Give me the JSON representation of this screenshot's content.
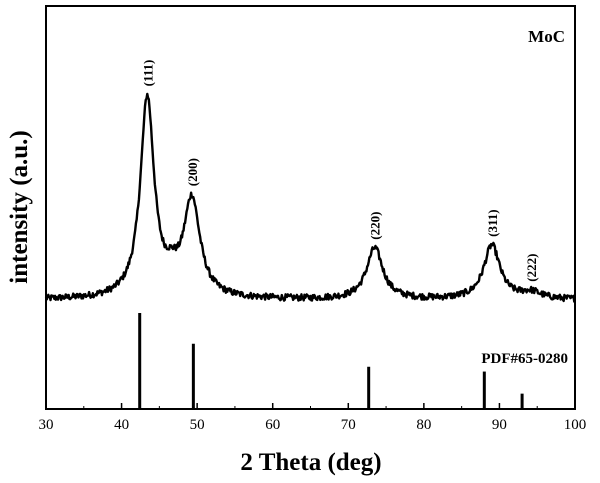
{
  "chart_data": {
    "type": "line",
    "title": "",
    "xlabel": "2 Theta (deg)",
    "ylabel": "intensity (a.u.)",
    "xlim": [
      30,
      100
    ],
    "xticks": [
      30,
      40,
      50,
      60,
      70,
      80,
      90,
      100
    ],
    "yticks_shown": false,
    "sample_label": "MoC",
    "series": [
      {
        "name": "MoC",
        "baseline": 0.08,
        "noise": 0.012,
        "peaks": [
          {
            "center": 43.4,
            "height": 0.74,
            "width": 1.1
          },
          {
            "center": 49.3,
            "height": 0.36,
            "width": 1.3
          },
          {
            "center": 46.6,
            "height": 0.05,
            "width": 1.0
          },
          {
            "center": 73.5,
            "height": 0.19,
            "width": 1.3
          },
          {
            "center": 89.0,
            "height": 0.2,
            "width": 1.3
          },
          {
            "center": 94.2,
            "height": 0.025,
            "width": 1.6
          }
        ]
      }
    ],
    "peak_labels": [
      {
        "x": 43.4,
        "text": "(111)"
      },
      {
        "x": 49.3,
        "text": "(200)"
      },
      {
        "x": 73.5,
        "text": "(220)"
      },
      {
        "x": 89.0,
        "text": "(311)"
      },
      {
        "x": 94.2,
        "text": "(222)"
      }
    ],
    "reference": {
      "label": "PDF#65-0280",
      "lines": [
        {
          "x": 42.4,
          "intensity": 1.0
        },
        {
          "x": 49.5,
          "intensity": 0.68
        },
        {
          "x": 72.7,
          "intensity": 0.44
        },
        {
          "x": 88.0,
          "intensity": 0.39
        },
        {
          "x": 93.0,
          "intensity": 0.16
        }
      ]
    },
    "grid": false,
    "legend": "none"
  }
}
